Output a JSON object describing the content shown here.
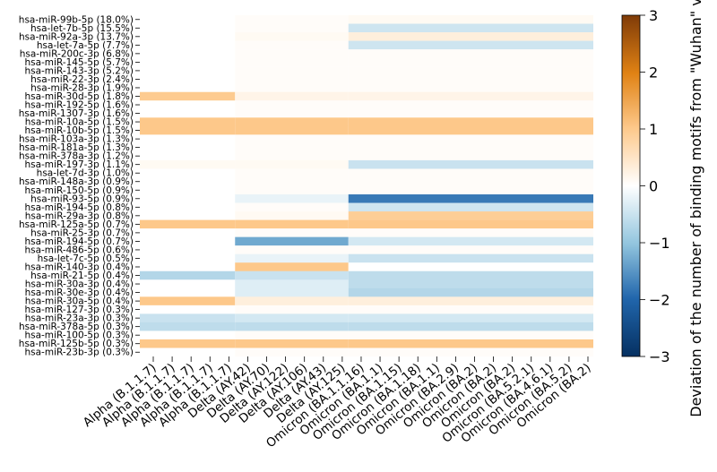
{
  "chart_data": {
    "type": "heatmap",
    "title": "",
    "xlabel": "",
    "ylabel": "",
    "rows": [
      "hsa-miR-99b-5p (18.0%)",
      "hsa-let-7b-5p (15.5%)",
      "hsa-miR-92a-3p (13.7%)",
      "hsa-let-7a-5p (7.7%)",
      "hsa-miR-200c-3p (6.8%)",
      "hsa-miR-145-5p (5.7%)",
      "hsa-miR-143-3p (5.2%)",
      "hsa-miR-22-3p (2.4%)",
      "hsa-miR-28-3p (1.9%)",
      "hsa-miR-30d-5p (1.8%)",
      "hsa-miR-192-5p (1.6%)",
      "hsa-miR-1307-3p (1.6%)",
      "hsa-miR-10a-5p (1.5%)",
      "hsa-miR-10b-5p (1.5%)",
      "hsa-miR-103a-3p (1.3%)",
      "hsa-miR-181a-5p (1.3%)",
      "hsa-miR-378a-3p (1.2%)",
      "hsa-miR-197-3p (1.1%)",
      "hsa-let-7d-3p (1.0%)",
      "hsa-miR-148a-3p (0.9%)",
      "hsa-miR-150-5p (0.9%)",
      "hsa-miR-93-5p (0.9%)",
      "hsa-miR-194-5p (0.8%)",
      "hsa-miR-29a-3p (0.8%)",
      "hsa-miR-125a-5p (0.7%)",
      "hsa-miR-25-3p (0.7%)",
      "hsa-miR-194-5p (0.7%)",
      "hsa-miR-486-5p (0.6%)",
      "hsa-let-7c-5p (0.5%)",
      "hsa-miR-140-3p (0.4%)",
      "hsa-miR-21-5p (0.4%)",
      "hsa-miR-30a-3p (0.4%)",
      "hsa-miR-30e-3p (0.4%)",
      "hsa-miR-30a-5p (0.4%)",
      "hsa-miR-127-3p (0.3%)",
      "hsa-miR-23a-3p (0.3%)",
      "hsa-miR-378a-5p (0.3%)",
      "hsa-miR-100-5p (0.3%)",
      "hsa-miR-125b-5p (0.3%)",
      "hsa-miR-23b-3p (0.3%)"
    ],
    "columns": [
      "Alpha (B.1.1.7)",
      "Alpha (B.1.1.7)",
      "Alpha (B.1.1.7)",
      "Alpha (B.1.1.7)",
      "Alpha (B.1.1.7)",
      "Delta (AY.42)",
      "Delta (AY.70)",
      "Delta (AY.122)",
      "Delta (AY.106)",
      "Delta (AY.43)",
      "Delta (AY.125)",
      "Omicron (BA.1.1.16)",
      "Omicron (BA.1.1)",
      "Omicron (BA.1.15)",
      "Omicron (BA.1.18)",
      "Omicron (BA.1.1)",
      "Omicron (BA.2.9)",
      "Omicron (BA.2)",
      "Omicron (BA.2)",
      "Omicron (BA.2)",
      "Omicron (BA.5.2.1)",
      "Omicron (BA.4.6.1)",
      "Omicron (BA.5.2)",
      "Omicron (BA.2)"
    ],
    "column_groups_approx": {
      "Alpha": [
        0,
        0.21
      ],
      "Delta": [
        0.21,
        0.46
      ],
      "Omicron": [
        0.46,
        1.0
      ]
    },
    "row_values_by_group": [
      {
        "row": 0,
        "Alpha": 0,
        "Delta": 0.05,
        "Omicron": 0.1
      },
      {
        "row": 1,
        "Alpha": 0,
        "Delta": 0.05,
        "Omicron": -0.45
      },
      {
        "row": 2,
        "Alpha": 0,
        "Delta": 0.1,
        "Omicron": 0.3
      },
      {
        "row": 3,
        "Alpha": 0,
        "Delta": 0.05,
        "Omicron": -0.45
      },
      {
        "row": 9,
        "Alpha": 0.95,
        "Delta": 0.2,
        "Omicron": 0.2
      },
      {
        "row": 12,
        "Alpha": 1.0,
        "Delta": 1.0,
        "Omicron": 1.0
      },
      {
        "row": 13,
        "Alpha": 1.0,
        "Delta": 1.0,
        "Omicron": 1.0
      },
      {
        "row": 17,
        "Alpha": 0.1,
        "Delta": 0.1,
        "Omicron": -0.5
      },
      {
        "row": 21,
        "Alpha": 0,
        "Delta": -0.2,
        "Omicron": -1.8
      },
      {
        "row": 22,
        "Alpha": 0,
        "Delta": 0.05,
        "Omicron": -0.45
      },
      {
        "row": 23,
        "Alpha": 0,
        "Delta": 0.1,
        "Omicron": 0.9
      },
      {
        "row": 24,
        "Alpha": 1.0,
        "Delta": 1.0,
        "Omicron": 1.0
      },
      {
        "row": 26,
        "Alpha": 0,
        "Delta": -1.3,
        "Omicron": -0.4
      },
      {
        "row": 28,
        "Alpha": 0,
        "Delta": -0.2,
        "Omicron": -0.5
      },
      {
        "row": 29,
        "Alpha": 0,
        "Delta": 1.0,
        "Omicron": 0
      },
      {
        "row": 30,
        "Alpha": -0.7,
        "Delta": -0.5,
        "Omicron": -0.6
      },
      {
        "row": 31,
        "Alpha": 0,
        "Delta": -0.3,
        "Omicron": -0.6
      },
      {
        "row": 32,
        "Alpha": 0,
        "Delta": -0.3,
        "Omicron": -0.7
      },
      {
        "row": 33,
        "Alpha": 1.0,
        "Delta": 0.3,
        "Omicron": 0.3
      },
      {
        "row": 35,
        "Alpha": -0.5,
        "Delta": -0.4,
        "Omicron": -0.4
      },
      {
        "row": 36,
        "Alpha": -0.6,
        "Delta": -0.6,
        "Omicron": -0.6
      },
      {
        "row": 38,
        "Alpha": 1.0,
        "Delta": 1.0,
        "Omicron": 1.0
      }
    ],
    "colorbar": {
      "label": "Deviation of the number of binding motifs from \"Wuhan\" variant",
      "range": [
        -3,
        3
      ],
      "ticks": [
        -3,
        -2,
        -1,
        0,
        1,
        2,
        3
      ],
      "colormap": "diverging blue-white-orange",
      "colors": {
        "negative": "#053061",
        "zero": "#ffffff",
        "positive": "#7f3b08"
      }
    }
  }
}
